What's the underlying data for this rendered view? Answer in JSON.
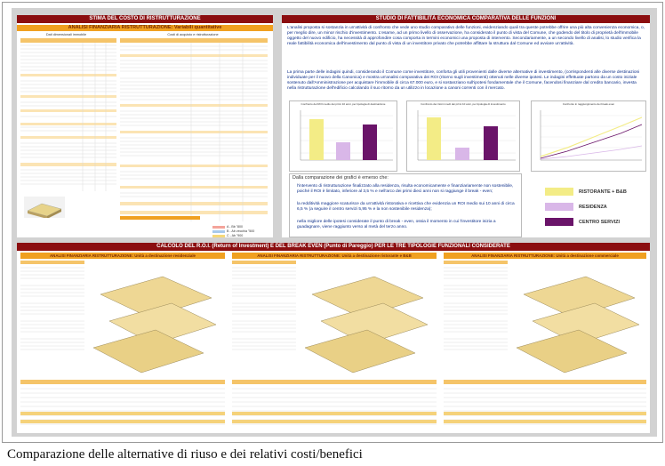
{
  "caption": "Comparazione delle alternative di riuso e dei relativi costi/benefici",
  "panels": {
    "cost_estimate": {
      "title": "STIMA DEL COSTO DI RISTRUTTURAZIONE",
      "subtitle": "ANALISI FINANZIARIA RISTRUTTURAZIONE: Variabili quantitative",
      "left_header": "Dati dimensionali immobile",
      "right_header": "Costi di acquisto e ristrutturazione",
      "legend": [
        "A - Bb \"800",
        "B - Ab vecchia \"500",
        "C - Ab \"900"
      ]
    },
    "feasibility": {
      "title": "STUDIO DI FATTIBILITÀ ECONOMICA COMPARATIVA DELLE FUNZIONI",
      "intro": "L'analisi proposta si sostanzia in un'attività di confronto che vede uno studio comparativo delle funzioni, evidenziando quali tra queste potrebbe offrire una più alta convenienza economica, o, per meglio dire, un minor rischio d'investimento. L'esame, ad un primo livello di osservazione, ha considerato il punto di vista del Comune, che godendo del titolo di proprietà dell'immobile oggetto del nuovo edificio, ha necessità di approfondire cosa comporta in termini economici una proposta di intervento. Secondariamente, a un secondo livello di analisi, lo studio verifica la reale fattibilità economica dell'investimento dal punto di vista di un investitore privato che potrebbe affittare la struttura dal Comune ed avviare un'attività.",
      "para2": "La prima parte delle indagini quindi, considerando il Comune come investitore, conforta gli utili provenienti dalle diverse alternative di investimento, (corrispondenti alle diverse destinazioni individuate per il nuovo della Canonica) e mostra un'analisi comparativa dei ROI (ritorno sugli investimenti) ottenuti nelle diverse ipotesi. Le indagini effettuate partono da un costo iniziale sostenuto dall'Amministrazione per acquistare l'immobile di circa 67.000 euro, e si sostanziano sull'ipotesi fondamentale che il Comune, facendosi finanziare dal credito bancario, investa nella ristrutturazione dell'edificio calcolando il suo ritorno da un utilizzo in locazione a canoni correnti con il mercato.",
      "charts": [
        "Confronto del ROI medio dei primi 10 anni, per tipologia di destinazione",
        "Confronto dei ritorni medi dei primi 10 anni, per tipologia di investimento",
        "Confronto in raggiungimento dei break even"
      ],
      "comparison_lead": "Dalla comparazione dei grafici è emerso che:",
      "bullets": [
        "l'intervento di ristrutturazione finalizzato alla residenza, risulta economicamente e finanziariamente non sostenibile, poiché il ROI è limitato, inferiore al 3,5 % e nell'arco dei primi dieci anni non si raggiunge il break - even;",
        "la redditività maggiore scaturisce da un'attività ristorativa e ricettiva che evidenzia un ROI medio sui 10 anni di circa 6,5 % (a seguire il centro servizi 5,95 % e la non sostenibile residenza);",
        "nella migliore delle ipotesi considerate il punto di break - even, ossia il momento in cui l'investitore inizia a guadagnare, viene raggiunto verso al metà del terzo anno."
      ],
      "legend": [
        {
          "label": "RISTORANTE + B&B",
          "color": "#f3ec86"
        },
        {
          "label": "RESIDENZA",
          "color": "#d9b7e8"
        },
        {
          "label": "CENTRO SERVIZI",
          "color": "#6a1469"
        }
      ]
    },
    "roi": {
      "title": "CALCOLO DEL R.O.I. (Return of Investment) E DEL BREAK EVEN (Punto di Pareggio) PER LE TRE TIPOLOGIE FUNZIONALI CONSIDERATE",
      "columns": [
        {
          "header": "ANALISI FINANZIARIA RISTRUTTURAZIONE: Unità a destinazione residenziale"
        },
        {
          "header": "ANALISI FINANZIARIA RISTRUTTURAZIONE: Unità a destinazione ristorante e B&B"
        },
        {
          "header": "ANALISI FINANZIARIA RISTRUTTURAZIONE: Unità a destinazione commerciale"
        }
      ]
    }
  }
}
